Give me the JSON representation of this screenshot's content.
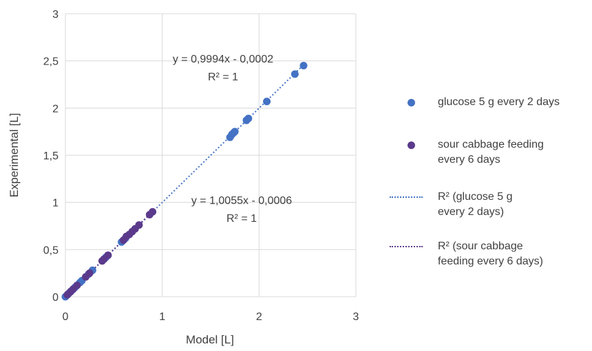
{
  "chart_data": {
    "type": "scatter",
    "xlabel": "Model [L]",
    "ylabel": "Experimental [L]",
    "xlim": [
      0,
      3
    ],
    "ylim": [
      0,
      3
    ],
    "x_ticks": [
      "0",
      "1",
      "2",
      "3"
    ],
    "y_ticks": [
      "0",
      "0,5",
      "1",
      "1,5",
      "2",
      "2,5",
      "3"
    ],
    "grid": "vertical and horizontal",
    "legend_position": "right",
    "series": [
      {
        "name": "glucose 5 g every 2 days",
        "color": "#4472C4",
        "points": [
          [
            0.0,
            0.0
          ],
          [
            0.03,
            0.03
          ],
          [
            0.06,
            0.06
          ],
          [
            0.1,
            0.1
          ],
          [
            0.15,
            0.15
          ],
          [
            0.17,
            0.17
          ],
          [
            0.24,
            0.24
          ],
          [
            0.28,
            0.28
          ],
          [
            0.42,
            0.42
          ],
          [
            0.58,
            0.58
          ],
          [
            0.62,
            0.62
          ],
          [
            1.7,
            1.69
          ],
          [
            1.72,
            1.72
          ],
          [
            1.74,
            1.74
          ],
          [
            1.75,
            1.75
          ],
          [
            1.87,
            1.87
          ],
          [
            1.89,
            1.89
          ],
          [
            2.08,
            2.07
          ],
          [
            2.37,
            2.36
          ],
          [
            2.46,
            2.45
          ]
        ]
      },
      {
        "name": "sour cabbage feeding every 6 days",
        "color": "#5B3A8C",
        "points": [
          [
            0.02,
            0.02
          ],
          [
            0.05,
            0.05
          ],
          [
            0.08,
            0.08
          ],
          [
            0.12,
            0.12
          ],
          [
            0.21,
            0.21
          ],
          [
            0.25,
            0.25
          ],
          [
            0.38,
            0.38
          ],
          [
            0.4,
            0.4
          ],
          [
            0.44,
            0.44
          ],
          [
            0.6,
            0.6
          ],
          [
            0.63,
            0.64
          ],
          [
            0.66,
            0.66
          ],
          [
            0.69,
            0.69
          ],
          [
            0.72,
            0.72
          ],
          [
            0.76,
            0.76
          ],
          [
            0.87,
            0.87
          ],
          [
            0.9,
            0.9
          ]
        ]
      }
    ],
    "trendlines": [
      {
        "name": "R² (glucose 5 g every 2 days)",
        "color": "#4472C4",
        "slope": 0.9994,
        "intercept": -0.0002,
        "x_range": [
          0,
          2.46
        ],
        "equation": "y = 0,9994x - 0,0002",
        "r2": "R² = 1"
      },
      {
        "name": "R² (sour cabbage feeding every 6 days)",
        "color": "#5B3A8C",
        "slope": 1.0055,
        "intercept": -0.0006,
        "x_range": [
          0,
          0.9
        ],
        "equation": "y = 1,0055x - 0,0006",
        "r2": "R² = 1"
      }
    ]
  },
  "legend": {
    "items": [
      {
        "kind": "marker",
        "label_lines": [
          "glucose 5 g every 2 days"
        ],
        "color": "#4472C4"
      },
      {
        "kind": "marker",
        "label_lines": [
          "sour cabbage feeding",
          "every 6 days"
        ],
        "color": "#5B3A8C"
      },
      {
        "kind": "line",
        "label_lines": [
          "R²  (glucose 5 g",
          "every 2 days)"
        ],
        "color": "#4472C4"
      },
      {
        "kind": "line",
        "label_lines": [
          "R²  (sour cabbage",
          "feeding every 6 days)"
        ],
        "color": "#5B3A8C"
      }
    ]
  }
}
